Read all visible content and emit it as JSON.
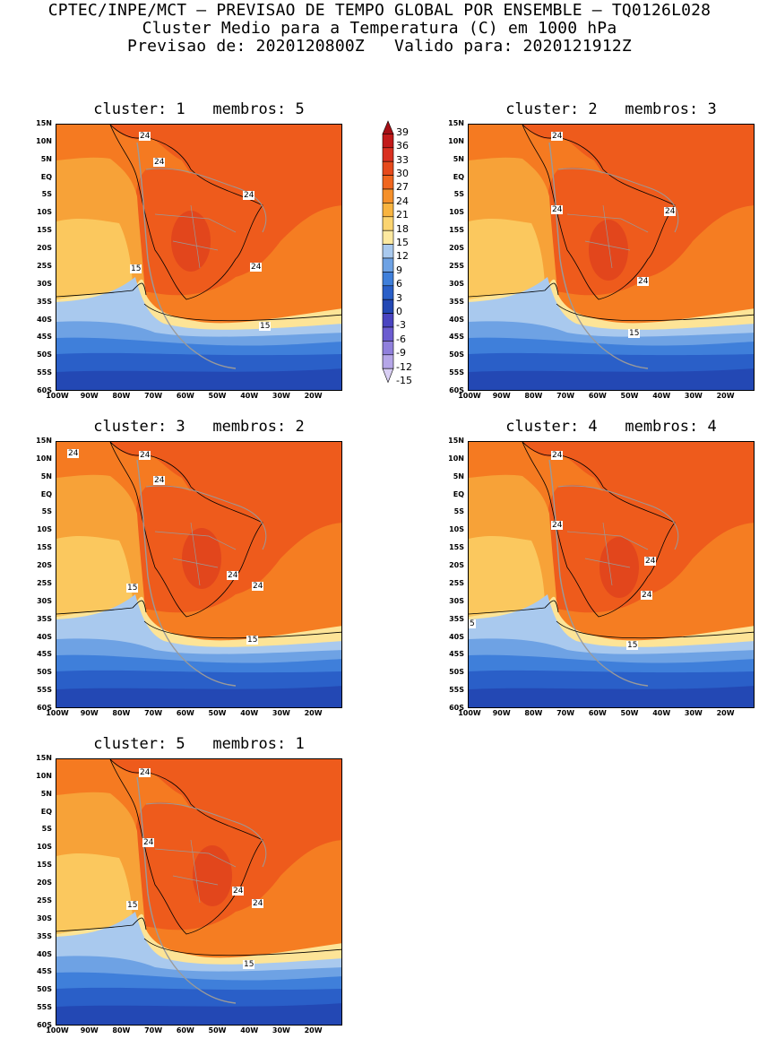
{
  "header": {
    "line1": "CPTEC/INPE/MCT – PREVISAO DE TEMPO GLOBAL POR ENSEMBLE – TQ0126L028",
    "line2": "Cluster Medio para a Temperatura (C) em 1000 hPa",
    "line3": "Previsao de: 2020120800Z   Valido para: 2020121912Z"
  },
  "lat_ticks": [
    "15N",
    "10N",
    "5N",
    "EQ",
    "5S",
    "10S",
    "15S",
    "20S",
    "25S",
    "30S",
    "35S",
    "40S",
    "45S",
    "50S",
    "55S",
    "60S"
  ],
  "lon_ticks": [
    "100W",
    "90W",
    "80W",
    "70W",
    "60W",
    "50W",
    "40W",
    "30W",
    "20W"
  ],
  "panels": [
    {
      "title": "cluster: 1   membros: 5",
      "labels": [
        {
          "t": "24",
          "x": 92,
          "y": 8
        },
        {
          "t": "24",
          "x": 108,
          "y": 37
        },
        {
          "t": "24",
          "x": 208,
          "y": 74
        },
        {
          "t": "24",
          "x": 216,
          "y": 154
        },
        {
          "t": "15",
          "x": 82,
          "y": 156
        },
        {
          "t": "15",
          "x": 226,
          "y": 220
        }
      ]
    },
    {
      "title": "cluster: 2   membros: 3",
      "labels": [
        {
          "t": "24",
          "x": 92,
          "y": 8
        },
        {
          "t": "24",
          "x": 92,
          "y": 90
        },
        {
          "t": "24",
          "x": 218,
          "y": 92
        },
        {
          "t": "24",
          "x": 188,
          "y": 170
        },
        {
          "t": "15",
          "x": 178,
          "y": 228
        }
      ]
    },
    {
      "title": "cluster: 3   membros: 2",
      "labels": [
        {
          "t": "24",
          "x": 12,
          "y": 8
        },
        {
          "t": "24",
          "x": 92,
          "y": 10
        },
        {
          "t": "24",
          "x": 108,
          "y": 38
        },
        {
          "t": "24",
          "x": 190,
          "y": 144
        },
        {
          "t": "24",
          "x": 218,
          "y": 156
        },
        {
          "t": "15",
          "x": 78,
          "y": 158
        },
        {
          "t": "15",
          "x": 212,
          "y": 216
        }
      ]
    },
    {
      "title": "cluster: 4   membros: 4",
      "labels": [
        {
          "t": "24",
          "x": 92,
          "y": 10
        },
        {
          "t": "24",
          "x": 92,
          "y": 88
        },
        {
          "t": "24",
          "x": 196,
          "y": 128
        },
        {
          "t": "24",
          "x": 192,
          "y": 166
        },
        {
          "t": "5",
          "x": 0,
          "y": 198
        },
        {
          "t": "15",
          "x": 176,
          "y": 222
        }
      ]
    },
    {
      "title": "cluster: 5   membros: 1",
      "labels": [
        {
          "t": "24",
          "x": 92,
          "y": 10
        },
        {
          "t": "24",
          "x": 96,
          "y": 88
        },
        {
          "t": "24",
          "x": 196,
          "y": 142
        },
        {
          "t": "24",
          "x": 218,
          "y": 156
        },
        {
          "t": "15",
          "x": 78,
          "y": 158
        },
        {
          "t": "15",
          "x": 208,
          "y": 224
        }
      ]
    }
  ],
  "colorbar": {
    "labels": [
      "39",
      "36",
      "33",
      "30",
      "27",
      "24",
      "21",
      "18",
      "15",
      "12",
      "9",
      "6",
      "3",
      "0",
      "-3",
      "-6",
      "-9",
      "-12",
      "-15"
    ],
    "colors": [
      "#a50f15",
      "#c21a1a",
      "#d93020",
      "#e64a1c",
      "#f0661e",
      "#f5902a",
      "#f8b440",
      "#fbd470",
      "#fde9a0",
      "#a9c9ee",
      "#6ea2e4",
      "#3f7fda",
      "#2a5fc8",
      "#2348b4",
      "#4a44c0",
      "#6b5cd0",
      "#9080dc",
      "#b5a6e8",
      "#d9cff4"
    ]
  },
  "field_colors": {
    "t27": "#ee5b1c",
    "t24": "#f57d22",
    "t21": "#f7a238",
    "t18": "#fbc85e",
    "t15": "#fde497",
    "t12": "#a9c9ee",
    "t9": "#6ea2e4",
    "t6": "#3f7fda",
    "t3": "#2a5fc8",
    "t0": "#2348b4",
    "t30": "#d9341d",
    "land": "#9a9a9a"
  }
}
